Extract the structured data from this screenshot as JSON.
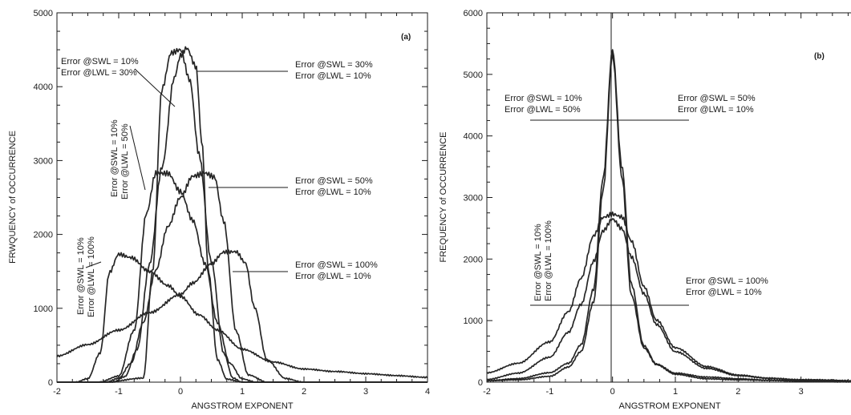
{
  "chart_data": [
    {
      "type": "line",
      "panel_label": "(a)",
      "xlabel": "ANGSTROM EXPONENT",
      "ylabel": "FRWQUENCY of OCCURRENCE",
      "xlim": [
        -2,
        4
      ],
      "ylim": [
        0,
        5000
      ],
      "xticks": [
        -2,
        -1,
        0,
        1,
        2,
        3,
        4
      ],
      "yticks": [
        0,
        1000,
        2000,
        3000,
        4000,
        5000
      ],
      "grid": false,
      "annotations": [
        {
          "lines": [
            "Error @SWL = 10%",
            "Error @LWL = 30%"
          ],
          "orientation": "horizontal"
        },
        {
          "lines": [
            "Error @SWL = 30%",
            "Error @LWL = 10%"
          ],
          "orientation": "horizontal"
        },
        {
          "lines": [
            "Error @SWL = 10%",
            "Error @LWL = 50%"
          ],
          "orientation": "vertical"
        },
        {
          "lines": [
            "Error @SWL = 50%",
            "Error @LWL = 10%"
          ],
          "orientation": "horizontal"
        },
        {
          "lines": [
            "Error @SWL = 10%",
            "Error @LWL = 100%"
          ],
          "orientation": "vertical"
        },
        {
          "lines": [
            "Error @SWL = 100%",
            "Error @LWL = 10%"
          ],
          "orientation": "horizontal"
        }
      ],
      "series": [
        {
          "x": [
            -2,
            -1.2,
            -0.6,
            -0.45,
            -0.3,
            -0.15,
            0,
            0.15,
            0.3,
            0.5,
            0.7,
            0.85,
            1,
            1.2,
            4
          ],
          "y": [
            0,
            0,
            50,
            1500,
            3950,
            4450,
            4500,
            4100,
            3100,
            1650,
            400,
            60,
            0,
            0,
            0
          ]
        },
        {
          "x": [
            -2,
            -1.1,
            -0.9,
            -0.7,
            -0.5,
            -0.3,
            -0.1,
            0,
            0.1,
            0.25,
            0.35,
            0.45,
            0.6,
            0.75,
            1,
            4
          ],
          "y": [
            0,
            0,
            80,
            450,
            1600,
            2900,
            4100,
            4400,
            4500,
            4250,
            3200,
            1500,
            300,
            40,
            0,
            0
          ]
        },
        {
          "x": [
            -2,
            -1.3,
            -1,
            -0.75,
            -0.55,
            -0.4,
            -0.2,
            0,
            0.2,
            0.4,
            0.6,
            0.8,
            1,
            1.2,
            4
          ],
          "y": [
            0,
            0,
            80,
            700,
            2300,
            2850,
            2850,
            2600,
            2200,
            1600,
            800,
            250,
            40,
            0,
            0
          ]
        },
        {
          "x": [
            -2,
            -1.2,
            -1,
            -0.8,
            -0.6,
            -0.4,
            -0.2,
            0,
            0.2,
            0.4,
            0.55,
            0.7,
            0.9,
            1.1,
            1.4,
            4
          ],
          "y": [
            0,
            0,
            50,
            250,
            800,
            1500,
            2100,
            2500,
            2800,
            2850,
            2800,
            2200,
            700,
            100,
            0,
            0
          ]
        },
        {
          "x": [
            -2,
            -1.7,
            -1.5,
            -1.3,
            -1.15,
            -1,
            -0.8,
            -0.5,
            -0.2,
            0,
            0.3,
            0.6,
            1,
            1.5,
            2,
            2.5,
            3,
            3.5,
            4
          ],
          "y": [
            0,
            0,
            50,
            400,
            1500,
            1750,
            1700,
            1500,
            1300,
            1150,
            900,
            700,
            450,
            280,
            180,
            140,
            110,
            90,
            70
          ]
        },
        {
          "x": [
            -2,
            -1.5,
            -1,
            -0.5,
            0,
            0.2,
            0.5,
            0.7,
            0.9,
            1.05,
            1.2,
            1.4,
            1.7,
            2,
            4
          ],
          "y": [
            350,
            500,
            700,
            950,
            1200,
            1350,
            1600,
            1750,
            1750,
            1600,
            1000,
            300,
            50,
            0,
            0
          ]
        }
      ]
    },
    {
      "type": "line",
      "panel_label": "(b)",
      "xlabel": "ANGSTROM EXPONENT",
      "ylabel": "FREQUENCY of OCCURRENCE",
      "xlim": [
        -2,
        4
      ],
      "ylim": [
        0,
        6000
      ],
      "xticks": [
        -2,
        -1,
        0,
        1,
        2,
        3
      ],
      "yticks": [
        0,
        1000,
        2000,
        3000,
        4000,
        5000,
        6000
      ],
      "grid": false,
      "annotations": [
        {
          "lines": [
            "Error @SWL = 10%",
            "Error @LWL = 50%"
          ],
          "orientation": "horizontal"
        },
        {
          "lines": [
            "Error @SWL = 50%",
            "Error @LWL = 10%"
          ],
          "orientation": "horizontal"
        },
        {
          "lines": [
            "Error @SWL = 10%",
            "Error @LWL = 100%"
          ],
          "orientation": "vertical"
        },
        {
          "lines": [
            "Error @SWL = 100%",
            "Error @LWL = 10%"
          ],
          "orientation": "horizontal"
        }
      ],
      "series": [
        {
          "x": [
            -2,
            -1.5,
            -1,
            -0.7,
            -0.5,
            -0.3,
            -0.15,
            0,
            0.15,
            0.3,
            0.5,
            0.7,
            1,
            1.5,
            2,
            2.5,
            3,
            4
          ],
          "y": [
            30,
            60,
            150,
            300,
            600,
            1500,
            3300,
            5400,
            3500,
            1600,
            600,
            300,
            150,
            80,
            50,
            30,
            20,
            10
          ]
        },
        {
          "x": [
            -2,
            -1.5,
            -1,
            -0.7,
            -0.5,
            -0.3,
            -0.15,
            0,
            0.15,
            0.3,
            0.5,
            0.7,
            1,
            1.5,
            2,
            2.5,
            3,
            4
          ],
          "y": [
            20,
            40,
            100,
            250,
            500,
            1300,
            3100,
            5300,
            3300,
            1400,
            550,
            280,
            130,
            60,
            40,
            25,
            15,
            5
          ]
        },
        {
          "x": [
            -2,
            -1.5,
            -1,
            -0.7,
            -0.5,
            -0.3,
            -0.15,
            0,
            0.15,
            0.3,
            0.5,
            0.7,
            1,
            1.5,
            2,
            2.5,
            3,
            4
          ],
          "y": [
            150,
            300,
            650,
            1150,
            1700,
            2400,
            2700,
            2750,
            2700,
            2300,
            1550,
            1000,
            550,
            250,
            120,
            70,
            40,
            15
          ]
        },
        {
          "x": [
            -2,
            -1.5,
            -1,
            -0.7,
            -0.5,
            -0.3,
            -0.15,
            0,
            0.15,
            0.3,
            0.5,
            0.7,
            1,
            1.5,
            2,
            2.5,
            3,
            4
          ],
          "y": [
            50,
            150,
            400,
            800,
            1250,
            1950,
            2450,
            2650,
            2500,
            2050,
            1450,
            950,
            500,
            220,
            100,
            60,
            35,
            10
          ]
        }
      ]
    }
  ]
}
